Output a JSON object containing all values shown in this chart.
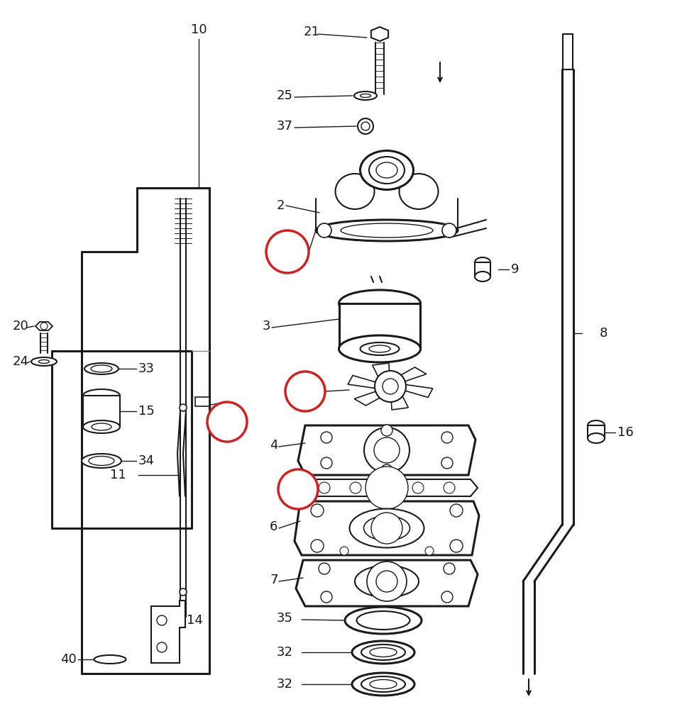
{
  "background_color": "#ffffff",
  "line_color": "#1a1a1a",
  "circle_highlight_color": "#cc2222",
  "figsize": [
    9.68,
    10.0
  ],
  "dpi": 100,
  "lw_heavy": 2.2,
  "lw_med": 1.5,
  "lw_light": 1.0,
  "lw_thin": 0.6,
  "fs_label": 13,
  "fs_small": 11
}
